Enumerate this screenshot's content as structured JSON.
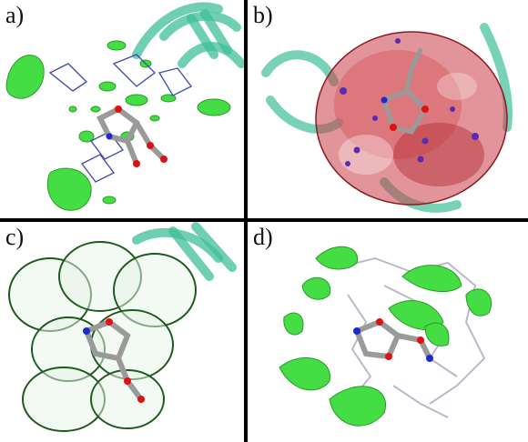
{
  "panels": {
    "a": {
      "label": "a)"
    },
    "b": {
      "label": "b)"
    },
    "c": {
      "label": "c)"
    },
    "d": {
      "label": "d)"
    }
  },
  "colors": {
    "background": "#ffffff",
    "divider": "#000000",
    "isosurface_green": "#44dd44",
    "isosurface_red": "#c83c46",
    "dna_ribbon": "#3fbf9a",
    "ligand_gray": "#9a9a9a",
    "oxygen_red": "#e01010",
    "nitrogen_blue": "#1a2acc",
    "mesh_dark_green": "#1f5a1f"
  }
}
